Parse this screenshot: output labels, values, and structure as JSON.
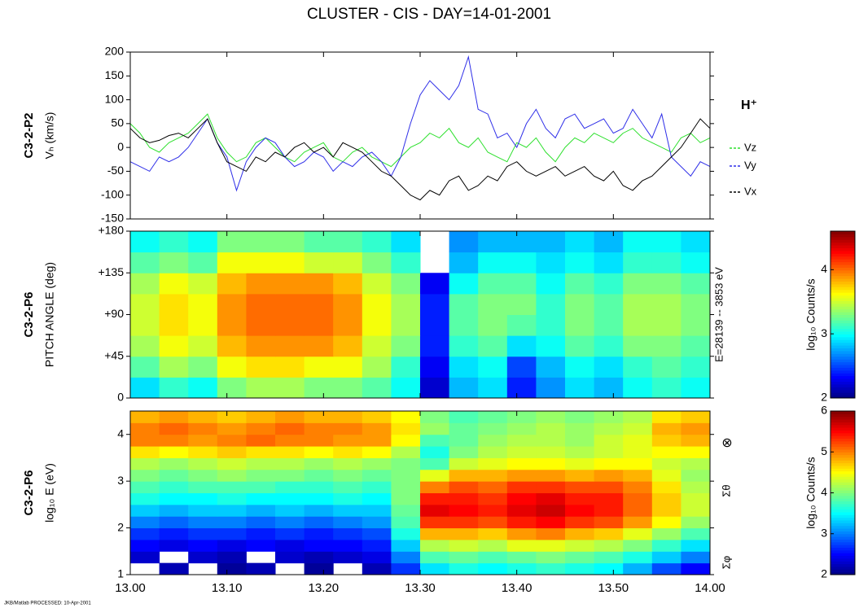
{
  "title": "CLUSTER - CIS - DAY=14-01-2001",
  "footer": "JKB/Matlab PROCESSED: 10-Apr-2001",
  "chart_data": [
    {
      "type": "line",
      "panel_label": "C3-2-P2",
      "ylabel": "Vₕ (km/s)",
      "species": "H⁺",
      "xlim": [
        0,
        60
      ],
      "xticks": [
        0,
        10,
        20,
        30,
        40,
        50,
        60
      ],
      "ylim": [
        -150,
        200
      ],
      "yticks": [
        -150,
        -100,
        -50,
        0,
        50,
        100,
        150,
        200
      ],
      "x": [
        0,
        1,
        2,
        3,
        4,
        5,
        6,
        7,
        8,
        9,
        10,
        11,
        12,
        13,
        14,
        15,
        16,
        17,
        18,
        19,
        20,
        21,
        22,
        23,
        24,
        25,
        26,
        27,
        28,
        29,
        30,
        31,
        32,
        33,
        34,
        35,
        36,
        37,
        38,
        39,
        40,
        41,
        42,
        43,
        44,
        45,
        46,
        47,
        48,
        49,
        50,
        51,
        52,
        53,
        54,
        55,
        56,
        57,
        58,
        59,
        60
      ],
      "series": [
        {
          "name": "Vz",
          "color": "#2ee02e",
          "values": [
            50,
            30,
            0,
            -10,
            10,
            20,
            30,
            50,
            70,
            20,
            -10,
            -30,
            -20,
            10,
            20,
            0,
            -20,
            -30,
            -10,
            0,
            10,
            -20,
            -30,
            -10,
            0,
            -20,
            -30,
            -40,
            -20,
            0,
            10,
            30,
            20,
            40,
            10,
            0,
            20,
            -10,
            -20,
            -30,
            10,
            0,
            20,
            -10,
            -30,
            0,
            20,
            10,
            30,
            20,
            10,
            30,
            40,
            20,
            10,
            0,
            -10,
            20,
            30,
            10,
            20
          ]
        },
        {
          "name": "Vy",
          "color": "#2f2fe8",
          "values": [
            -30,
            -40,
            -50,
            -20,
            -30,
            -20,
            0,
            30,
            60,
            10,
            -20,
            -90,
            -30,
            0,
            20,
            10,
            -20,
            -40,
            -30,
            -10,
            -20,
            -50,
            -30,
            -40,
            -20,
            -10,
            -30,
            -60,
            -20,
            50,
            110,
            140,
            120,
            100,
            130,
            190,
            80,
            70,
            20,
            30,
            0,
            50,
            80,
            40,
            20,
            60,
            70,
            40,
            50,
            60,
            30,
            40,
            80,
            50,
            20,
            70,
            -20,
            -40,
            -60,
            -30,
            -40
          ]
        },
        {
          "name": "Vx",
          "color": "#000000",
          "values": [
            40,
            20,
            10,
            15,
            25,
            30,
            20,
            40,
            60,
            10,
            -30,
            -40,
            -50,
            -20,
            -30,
            -10,
            -20,
            0,
            10,
            -10,
            0,
            -20,
            10,
            0,
            -10,
            -30,
            -50,
            -60,
            -80,
            -100,
            -110,
            -90,
            -100,
            -70,
            -60,
            -90,
            -80,
            -60,
            -70,
            -40,
            -30,
            -50,
            -60,
            -50,
            -40,
            -60,
            -50,
            -40,
            -60,
            -70,
            -50,
            -80,
            -90,
            -70,
            -60,
            -40,
            -20,
            0,
            30,
            60,
            40
          ]
        }
      ]
    },
    {
      "type": "heatmap",
      "panel_label": "C3-2-P6",
      "ylabel": "PITCH ANGLE (deg)",
      "right_label": "E=28139 -- 3853 eV",
      "xlim": [
        0,
        60
      ],
      "xticks": [
        0,
        10,
        20,
        30,
        40,
        50,
        60
      ],
      "ylim": [
        0,
        180
      ],
      "yticks": [
        0,
        {
          "value": 45,
          "label": "+45"
        },
        {
          "value": 90,
          "label": "+90"
        },
        {
          "value": 135,
          "label": "+135"
        },
        {
          "value": 180,
          "label": "+180"
        }
      ],
      "x_edges": [
        0,
        3,
        6,
        9,
        12,
        15,
        18,
        21,
        24,
        27,
        30,
        33,
        36,
        39,
        42,
        45,
        48,
        51,
        54,
        57,
        60
      ],
      "y_edges": [
        0,
        22.5,
        45,
        67.5,
        90,
        112.5,
        135,
        157.5,
        180
      ],
      "z": [
        [
          2.9,
          3.1,
          3.0,
          3.3,
          3.4,
          3.4,
          3.3,
          3.3,
          3.2,
          3.0,
          2.2,
          2.8,
          2.9,
          2.4,
          2.7,
          2.9,
          2.8,
          3.0,
          3.1,
          3.0
        ],
        [
          3.2,
          3.4,
          3.3,
          3.6,
          3.7,
          3.7,
          3.6,
          3.6,
          3.4,
          3.1,
          2.3,
          2.9,
          3.0,
          2.5,
          2.8,
          3.0,
          2.9,
          3.1,
          3.2,
          3.1
        ],
        [
          3.4,
          3.6,
          3.5,
          3.8,
          3.9,
          3.9,
          3.9,
          3.8,
          3.5,
          3.3,
          2.4,
          3.1,
          3.2,
          2.9,
          3.0,
          3.2,
          3.1,
          3.3,
          3.3,
          3.2
        ],
        [
          3.5,
          3.7,
          3.6,
          3.9,
          4.0,
          4.0,
          4.0,
          3.9,
          3.6,
          3.4,
          2.4,
          3.2,
          3.3,
          3.2,
          3.1,
          3.3,
          3.2,
          3.4,
          3.4,
          3.3
        ],
        [
          3.5,
          3.7,
          3.6,
          3.9,
          4.0,
          4.0,
          4.0,
          3.9,
          3.6,
          3.4,
          2.4,
          3.2,
          3.3,
          3.3,
          3.1,
          3.3,
          3.2,
          3.4,
          3.4,
          3.3
        ],
        [
          3.4,
          3.6,
          3.5,
          3.8,
          3.9,
          3.9,
          3.9,
          3.8,
          3.5,
          3.3,
          2.3,
          3.0,
          3.2,
          3.2,
          3.0,
          3.2,
          3.1,
          3.3,
          3.3,
          3.2
        ],
        [
          3.2,
          3.3,
          3.2,
          3.6,
          3.6,
          3.6,
          3.5,
          3.5,
          3.3,
          3.1,
          null,
          2.8,
          3.0,
          3.0,
          2.9,
          3.0,
          2.9,
          3.1,
          3.1,
          3.0
        ],
        [
          3.0,
          3.1,
          3.0,
          3.3,
          3.3,
          3.3,
          3.2,
          3.2,
          3.1,
          2.9,
          null,
          2.7,
          2.8,
          2.8,
          2.8,
          2.9,
          2.8,
          3.0,
          3.0,
          2.9
        ]
      ],
      "colorbar": {
        "lim": [
          2,
          4.6
        ],
        "ticks": [
          2,
          3,
          4
        ],
        "label": "log₁₀ Counts/s"
      }
    },
    {
      "type": "heatmap",
      "panel_label": "C3-2-P6",
      "ylabel": "log₁₀ E (eV)",
      "annotations": [
        "⊗",
        "Σθ",
        "Σφ"
      ],
      "xlim": [
        0,
        60
      ],
      "xticks": [
        {
          "value": 0,
          "label": "13.00"
        },
        {
          "value": 10,
          "label": "13.10"
        },
        {
          "value": 20,
          "label": "13.20"
        },
        {
          "value": 30,
          "label": "13.30"
        },
        {
          "value": 40,
          "label": "13.40"
        },
        {
          "value": 50,
          "label": "13.50"
        },
        {
          "value": 60,
          "label": "14.00"
        }
      ],
      "ylim": [
        1,
        4.5
      ],
      "yticks": [
        1,
        2,
        3,
        4
      ],
      "x_edges": [
        0,
        3,
        6,
        9,
        12,
        15,
        18,
        21,
        24,
        27,
        30,
        33,
        36,
        39,
        42,
        45,
        48,
        51,
        54,
        57,
        60
      ],
      "y_edges": [
        1,
        1.25,
        1.5,
        1.75,
        2,
        2.25,
        2.5,
        2.75,
        3,
        3.25,
        3.5,
        3.75,
        4,
        4.25,
        4.5
      ],
      "z": [
        [
          null,
          2.2,
          null,
          2.1,
          2.2,
          null,
          2.1,
          null,
          2.2,
          2.7,
          3.4,
          3.6,
          3.5,
          3.6,
          3.7,
          3.6,
          3.5,
          3.2,
          2.8,
          2.5
        ],
        [
          2.3,
          null,
          2.3,
          2.2,
          null,
          2.3,
          2.2,
          2.3,
          2.4,
          3.0,
          3.8,
          3.9,
          3.8,
          3.9,
          4.0,
          3.9,
          3.8,
          3.6,
          3.3,
          3.0
        ],
        [
          2.5,
          2.4,
          2.5,
          2.4,
          2.5,
          2.4,
          2.5,
          2.5,
          2.6,
          3.3,
          4.2,
          4.3,
          4.2,
          4.4,
          4.4,
          4.3,
          4.2,
          4.0,
          3.7,
          3.4
        ],
        [
          2.7,
          2.6,
          2.7,
          2.7,
          2.6,
          2.7,
          2.6,
          2.7,
          2.8,
          3.6,
          4.8,
          4.8,
          4.7,
          4.9,
          5.0,
          4.8,
          4.7,
          4.4,
          4.1,
          3.8
        ],
        [
          3.0,
          2.9,
          3.0,
          3.0,
          2.9,
          3.0,
          2.9,
          3.0,
          3.1,
          3.8,
          5.3,
          5.3,
          5.2,
          5.4,
          5.5,
          5.3,
          5.2,
          4.9,
          4.5,
          4.1
        ],
        [
          3.3,
          3.2,
          3.3,
          3.3,
          3.2,
          3.3,
          3.2,
          3.3,
          3.3,
          3.9,
          5.6,
          5.5,
          5.4,
          5.6,
          5.7,
          5.5,
          5.4,
          5.1,
          4.7,
          4.3
        ],
        [
          3.6,
          3.5,
          3.5,
          3.6,
          3.5,
          3.5,
          3.5,
          3.6,
          3.5,
          4.0,
          5.4,
          5.4,
          5.3,
          5.5,
          5.6,
          5.4,
          5.4,
          5.1,
          4.7,
          4.3
        ],
        [
          3.8,
          3.7,
          3.8,
          3.8,
          3.8,
          3.7,
          3.7,
          3.8,
          3.7,
          4.0,
          5.0,
          5.2,
          5.1,
          5.3,
          5.3,
          5.2,
          5.2,
          5.0,
          4.6,
          4.2
        ],
        [
          4.0,
          3.9,
          4.0,
          4.1,
          4.0,
          4.0,
          3.9,
          4.0,
          3.9,
          4.0,
          4.4,
          4.8,
          4.8,
          4.9,
          4.9,
          4.8,
          4.9,
          4.8,
          4.4,
          4.1
        ],
        [
          4.2,
          4.1,
          4.2,
          4.3,
          4.2,
          4.2,
          4.1,
          4.2,
          4.1,
          4.0,
          3.8,
          4.3,
          4.4,
          4.5,
          4.5,
          4.4,
          4.5,
          4.5,
          4.3,
          4.2
        ],
        [
          4.6,
          4.5,
          4.6,
          4.7,
          4.6,
          4.6,
          4.5,
          4.6,
          4.5,
          4.2,
          3.6,
          4.0,
          4.2,
          4.3,
          4.3,
          4.2,
          4.3,
          4.4,
          4.5,
          4.5
        ],
        [
          5.0,
          5.0,
          4.9,
          5.0,
          5.1,
          5.0,
          5.0,
          4.9,
          4.9,
          4.5,
          3.8,
          3.9,
          4.1,
          4.2,
          4.2,
          4.1,
          4.3,
          4.4,
          4.7,
          4.8
        ],
        [
          5.0,
          5.1,
          5.0,
          4.9,
          5.0,
          5.1,
          5.0,
          5.0,
          4.9,
          4.6,
          4.1,
          3.9,
          4.0,
          4.1,
          4.2,
          4.1,
          4.2,
          4.3,
          4.8,
          4.9
        ],
        [
          4.8,
          4.9,
          4.8,
          4.7,
          4.8,
          4.9,
          4.8,
          4.8,
          4.7,
          4.5,
          4.0,
          3.8,
          3.9,
          4.0,
          4.1,
          4.0,
          4.1,
          4.2,
          4.6,
          4.7
        ]
      ],
      "colorbar": {
        "lim": [
          2,
          6
        ],
        "ticks": [
          2,
          3,
          4,
          5,
          6
        ],
        "label": "log₁₀ Counts/s"
      }
    }
  ]
}
